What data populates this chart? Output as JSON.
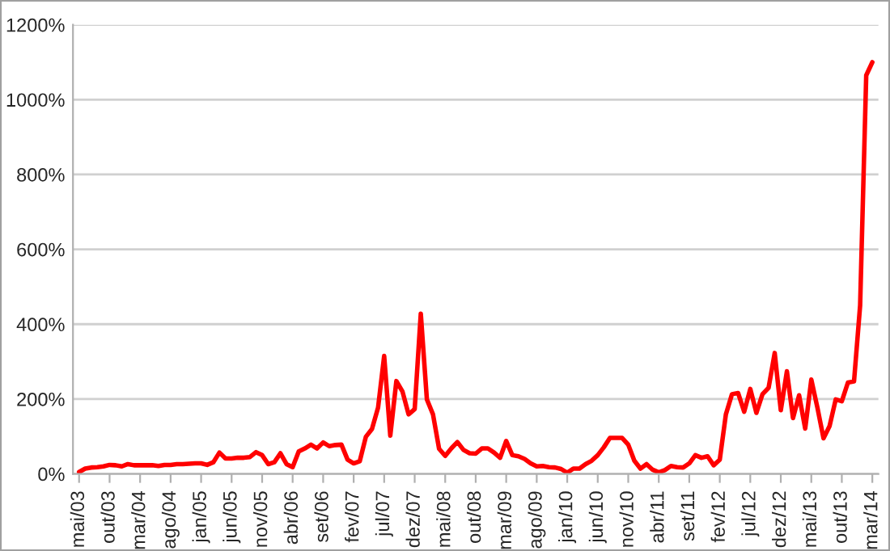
{
  "chart_data": {
    "type": "line",
    "categories": [
      "mai/03",
      null,
      null,
      null,
      null,
      "out/03",
      null,
      null,
      null,
      null,
      "mar/04",
      null,
      null,
      null,
      null,
      "ago/04",
      null,
      null,
      null,
      null,
      "jan/05",
      null,
      null,
      null,
      null,
      "jun/05",
      null,
      null,
      null,
      null,
      "nov/05",
      null,
      null,
      null,
      null,
      "abr/06",
      null,
      null,
      null,
      null,
      "set/06",
      null,
      null,
      null,
      null,
      "fev/07",
      null,
      null,
      null,
      null,
      "jul/07",
      null,
      null,
      null,
      null,
      "dez/07",
      null,
      null,
      null,
      null,
      "mai/08",
      null,
      null,
      null,
      null,
      "out/08",
      null,
      null,
      null,
      null,
      "mar/09",
      null,
      null,
      null,
      null,
      "ago/09",
      null,
      null,
      null,
      null,
      "jan/10",
      null,
      null,
      null,
      null,
      "jun/10",
      null,
      null,
      null,
      null,
      "nov/10",
      null,
      null,
      null,
      null,
      "abr/11",
      null,
      null,
      null,
      null,
      "set/11",
      null,
      null,
      null,
      null,
      "fev/12",
      null,
      null,
      null,
      null,
      "jul/12",
      null,
      null,
      null,
      null,
      "dez/12",
      null,
      null,
      null,
      null,
      "mai/13",
      null,
      null,
      null,
      null,
      "out/13",
      null,
      null,
      null,
      null,
      "mar/14"
    ],
    "series": [
      {
        "color": "#ff0000",
        "values": [
          5,
          14,
          17,
          18,
          20,
          24,
          23,
          20,
          26,
          23,
          23,
          23,
          23,
          21,
          24,
          24,
          26,
          26,
          27,
          28,
          28,
          24,
          31,
          57,
          41,
          41,
          43,
          43,
          45,
          58,
          50,
          26,
          31,
          55,
          26,
          18,
          60,
          68,
          78,
          68,
          84,
          74,
          77,
          78,
          38,
          28,
          34,
          99,
          120,
          177,
          315,
          102,
          248,
          220,
          159,
          173,
          428,
          199,
          159,
          67,
          48,
          68,
          85,
          64,
          55,
          54,
          68,
          68,
          57,
          43,
          88,
          50,
          47,
          40,
          28,
          20,
          21,
          18,
          17,
          13,
          3,
          14,
          14,
          26,
          35,
          50,
          71,
          96,
          96,
          96,
          78,
          35,
          14,
          26,
          11,
          4,
          10,
          21,
          18,
          17,
          28,
          50,
          43,
          47,
          23,
          38,
          159,
          213,
          216,
          166,
          227,
          163,
          213,
          230,
          323,
          170,
          274,
          149,
          210,
          121,
          252,
          177,
          95,
          128,
          199,
          194,
          244,
          247,
          450,
          1065,
          1100
        ]
      }
    ],
    "ylim": [
      0,
      1200
    ],
    "yticks": [
      {
        "value": 0,
        "label": "0%"
      },
      {
        "value": 200,
        "label": "200%"
      },
      {
        "value": 400,
        "label": "400%"
      },
      {
        "value": 600,
        "label": "600%"
      },
      {
        "value": 800,
        "label": "800%"
      },
      {
        "value": 1000,
        "label": "1000%"
      },
      {
        "value": 1200,
        "label": "1200%"
      }
    ],
    "grid": "y",
    "marker": "none",
    "line_style": "solid"
  }
}
